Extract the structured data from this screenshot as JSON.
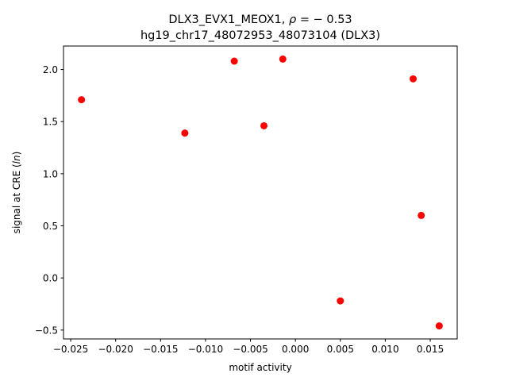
{
  "chart_data": {
    "type": "scatter",
    "title_line1": "DLX3_EVX1_MEOX1, ρ = − 0.53",
    "title_line2": "hg19_chr17_48072953_48073104 (DLX3)",
    "xlabel": "motif activity",
    "ylabel": "signal at CRE (ln)",
    "xlim": [
      -0.0258,
      0.018
    ],
    "ylim": [
      -0.585,
      2.225
    ],
    "x_ticks": [
      -0.025,
      -0.02,
      -0.015,
      -0.01,
      -0.005,
      0.0,
      0.005,
      0.01,
      0.015
    ],
    "x_tick_labels": [
      "−0.025",
      "−0.020",
      "−0.015",
      "−0.010",
      "−0.005",
      "0.000",
      "0.005",
      "0.010",
      "0.015"
    ],
    "y_ticks": [
      -0.5,
      0.0,
      0.5,
      1.0,
      1.5,
      2.0
    ],
    "y_tick_labels": [
      "−0.5",
      "0.0",
      "0.5",
      "1.0",
      "1.5",
      "2.0"
    ],
    "grid": false,
    "marker_color": "#ff0000",
    "points": [
      {
        "x": -0.0238,
        "y": 1.71
      },
      {
        "x": -0.0123,
        "y": 1.39
      },
      {
        "x": -0.0068,
        "y": 2.08
      },
      {
        "x": -0.0035,
        "y": 1.46
      },
      {
        "x": -0.0014,
        "y": 2.1
      },
      {
        "x": 0.005,
        "y": -0.22
      },
      {
        "x": 0.0131,
        "y": 1.91
      },
      {
        "x": 0.014,
        "y": 0.6
      },
      {
        "x": 0.016,
        "y": -0.46
      }
    ]
  }
}
